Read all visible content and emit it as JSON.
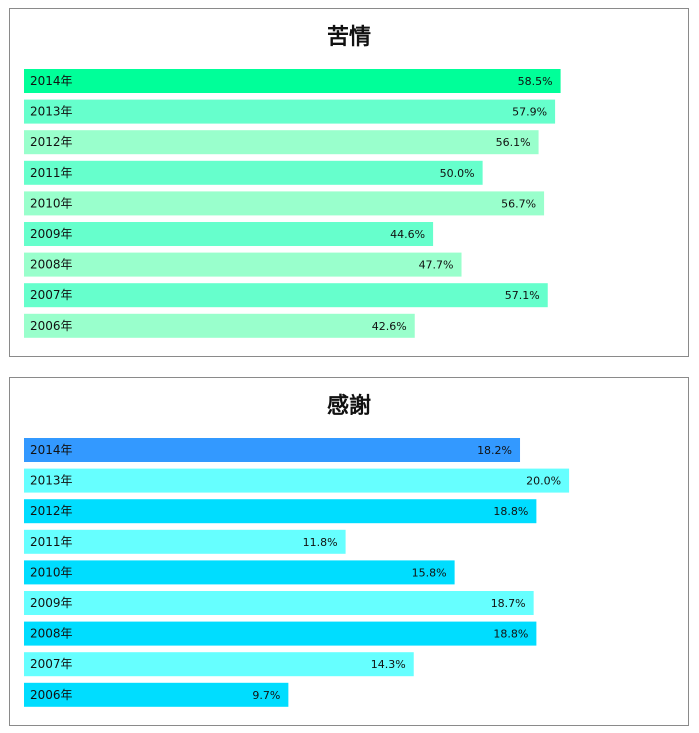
{
  "chart_data": [
    {
      "type": "bar",
      "orientation": "horizontal",
      "title": "苦情",
      "categories": [
        "2014年",
        "2013年",
        "2012年",
        "2011年",
        "2010年",
        "2009年",
        "2008年",
        "2007年",
        "2006年"
      ],
      "values": [
        58.5,
        57.9,
        56.1,
        50.0,
        56.7,
        44.6,
        47.7,
        57.1,
        42.6
      ],
      "value_labels": [
        "58.5%",
        "57.9%",
        "56.1%",
        "50.0%",
        "56.7%",
        "44.6%",
        "47.7%",
        "57.1%",
        "42.6%"
      ],
      "bar_colors": [
        "#00ff99",
        "#66ffcc",
        "#99ffcc",
        "#66ffcc",
        "#99ffcc",
        "#66ffcc",
        "#99ffcc",
        "#66ffcc",
        "#99ffcc"
      ],
      "xlim": [
        0,
        72.5
      ],
      "grid": false
    },
    {
      "type": "bar",
      "orientation": "horizontal",
      "title": "感謝",
      "categories": [
        "2014年",
        "2013年",
        "2012年",
        "2011年",
        "2010年",
        "2009年",
        "2008年",
        "2007年",
        "2006年"
      ],
      "values": [
        18.2,
        20.0,
        18.8,
        11.8,
        15.8,
        18.7,
        18.8,
        14.3,
        9.7
      ],
      "value_labels": [
        "18.2%",
        "20.0%",
        "18.8%",
        "11.8%",
        "15.8%",
        "18.7%",
        "18.8%",
        "14.3%",
        "9.7%"
      ],
      "bar_colors": [
        "#3399ff",
        "#66ffff",
        "#00ddff",
        "#66ffff",
        "#00ddff",
        "#66ffff",
        "#00ddff",
        "#66ffff",
        "#00ddff"
      ],
      "xlim": [
        0,
        24.4
      ],
      "grid": false
    }
  ]
}
